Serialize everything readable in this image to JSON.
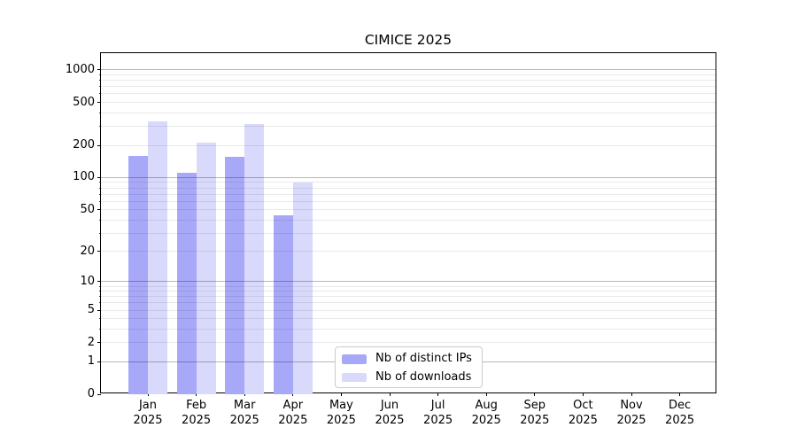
{
  "chart_data": {
    "type": "bar",
    "title": "CIMICE 2025",
    "y_scale": "log(1+x)",
    "ylim": [
      0,
      1400
    ],
    "yticks": [
      0,
      1,
      2,
      5,
      10,
      20,
      50,
      100,
      200,
      500,
      1000
    ],
    "categories": [
      "Jan",
      "Feb",
      "Mar",
      "Apr",
      "May",
      "Jun",
      "Jul",
      "Aug",
      "Sep",
      "Oct",
      "Nov",
      "Dec"
    ],
    "year_label": "2025",
    "series": [
      {
        "name": "Nb of distinct IPs",
        "color": "#a8a8f8",
        "values": [
          160,
          112,
          155,
          44,
          0,
          0,
          0,
          0,
          0,
          0,
          0,
          0
        ]
      },
      {
        "name": "Nb of downloads",
        "color": "#d9d9fb",
        "values": [
          335,
          210,
          315,
          90,
          0,
          0,
          0,
          0,
          0,
          0,
          0,
          0
        ]
      }
    ],
    "grid": true,
    "legend_position": "lower center",
    "xlabel": "",
    "ylabel": ""
  },
  "colors": {
    "axis": "#000000",
    "grid_major": "rgba(0,0,0,0.28)",
    "grid_minor": "rgba(0,0,0,0.085)",
    "background": "#ffffff",
    "legend_border": "#cccccc"
  }
}
